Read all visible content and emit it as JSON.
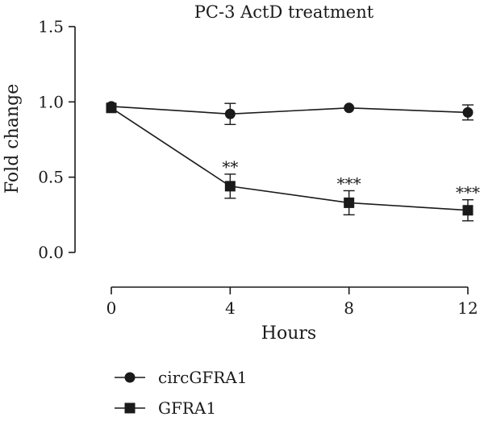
{
  "chart_data": {
    "type": "line",
    "title": "PC-3 ActD treatment",
    "xlabel": "Hours",
    "ylabel": "Fold change",
    "x": [
      0,
      4,
      8,
      12
    ],
    "x_tick_labels": [
      "0",
      "4",
      "8",
      "12"
    ],
    "xlim": [
      0,
      12
    ],
    "ylim": [
      0,
      1.5
    ],
    "y_ticks": [
      0.0,
      0.5,
      1.0,
      1.5
    ],
    "y_tick_labels": [
      "0.0",
      "0.5",
      "1.0",
      "1.5"
    ],
    "grid": false,
    "legend_position": "bottom-left",
    "series": [
      {
        "name": "circGFRA1",
        "marker": "circle",
        "values": [
          0.97,
          0.92,
          0.96,
          0.93
        ],
        "error": [
          0.0,
          0.07,
          0.0,
          0.05
        ],
        "annotations": [
          "",
          "",
          "",
          ""
        ]
      },
      {
        "name": "GFRA1",
        "marker": "square",
        "values": [
          0.96,
          0.44,
          0.33,
          0.28
        ],
        "error": [
          0.0,
          0.08,
          0.08,
          0.07
        ],
        "annotations": [
          "",
          "**",
          "***",
          "***"
        ]
      }
    ]
  }
}
